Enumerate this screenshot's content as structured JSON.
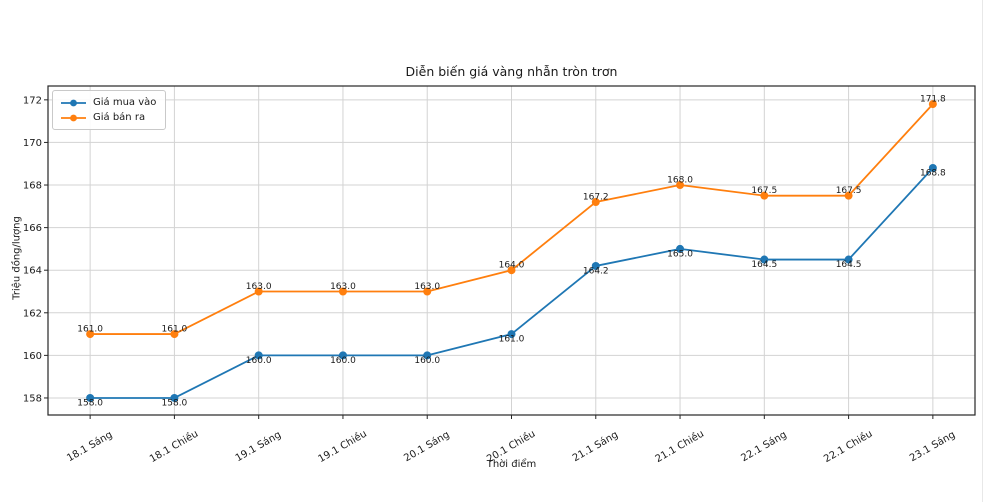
{
  "page": {
    "background": "#ffffff"
  },
  "chart_data": {
    "type": "line",
    "title": "Diễn biến giá vàng nhẫn tròn trơn",
    "xlabel": "Thời điểm",
    "ylabel": "Triệu đồng/lượng",
    "categories": [
      "18.1 Sáng",
      "18.1 Chiều",
      "19.1 Sáng",
      "19.1 Chiều",
      "20.1 Sáng",
      "20.1 Chiều",
      "21.1 Sáng",
      "21.1 Chiều",
      "22.1 Sáng",
      "22.1 Chiều",
      "23.1 Sáng"
    ],
    "series": [
      {
        "name": "Giá mua vào",
        "color": "#1f77b4",
        "values": [
          158.0,
          158.0,
          160.0,
          160.0,
          160.0,
          161.0,
          164.2,
          165.0,
          164.5,
          164.5,
          168.8
        ]
      },
      {
        "name": "Giá bán ra",
        "color": "#ff7f0e",
        "values": [
          161.0,
          161.0,
          163.0,
          163.0,
          163.0,
          164.0,
          167.2,
          168.0,
          167.5,
          167.5,
          171.8
        ]
      }
    ],
    "y_ticks": [
      158,
      160,
      162,
      164,
      166,
      168,
      170,
      172
    ],
    "ylim": [
      157.2,
      172.65
    ],
    "grid": true,
    "legend_position": "upper-left",
    "point_labels": true,
    "point_label_decimals": 1
  }
}
